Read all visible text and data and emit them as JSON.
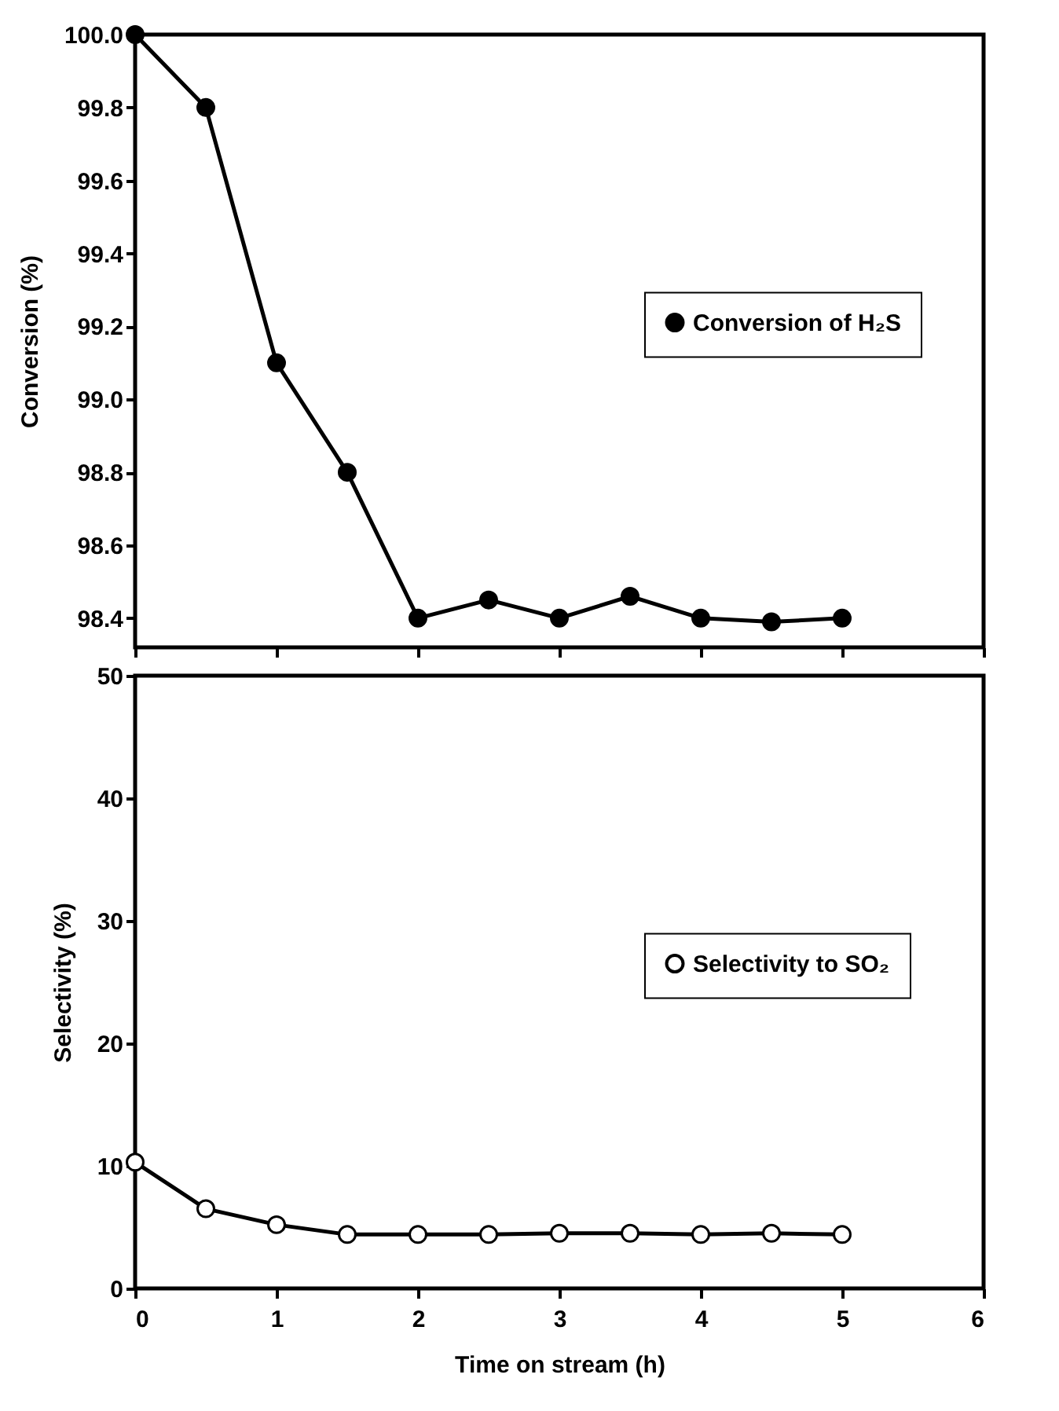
{
  "chart_data": [
    {
      "type": "line",
      "ylabel": "Conversion (%)",
      "x": [
        0,
        0.5,
        1,
        1.5,
        2,
        2.5,
        3,
        3.5,
        4,
        4.5,
        5
      ],
      "series": [
        {
          "name": "Conversion of H₂S",
          "color": "#000000",
          "values": [
            100.0,
            99.8,
            99.1,
            98.8,
            98.4,
            98.45,
            98.4,
            98.46,
            98.4,
            98.39,
            98.4
          ]
        }
      ],
      "xlim": [
        0,
        6
      ],
      "xticks": [
        0,
        1,
        2,
        3,
        4,
        5,
        6
      ],
      "ylim": [
        98.32,
        100.0
      ],
      "yticks": [
        98.4,
        98.6,
        98.8,
        {
          "value": 99.0,
          "label": "99.0"
        },
        99.2,
        99.4,
        99.6,
        99.8,
        {
          "value": 100.0,
          "label": "100.0"
        }
      ],
      "tick_labels": "y",
      "marker": "circle",
      "line_style": "solid",
      "grid": false,
      "legend": "right"
    },
    {
      "type": "line",
      "xlabel": "Time on stream (h)",
      "ylabel": "Selectivity (%)",
      "x": [
        0,
        0.5,
        1,
        1.5,
        2,
        2.5,
        3,
        3.5,
        4,
        4.5,
        5
      ],
      "series": [
        {
          "name": "Selectivity to SO₂",
          "color": "#000000",
          "values": [
            10.3,
            6.5,
            5.2,
            4.4,
            4.4,
            4.4,
            4.5,
            4.5,
            4.4,
            4.5,
            4.4
          ]
        }
      ],
      "xlim": [
        0,
        6
      ],
      "xticks": [
        0,
        1,
        2,
        3,
        4,
        5,
        6
      ],
      "ylim": [
        0,
        50
      ],
      "yticks": [
        0,
        10,
        20,
        30,
        40,
        50
      ],
      "marker": "circle",
      "line_style": "solid",
      "grid": false,
      "legend": "right"
    }
  ]
}
